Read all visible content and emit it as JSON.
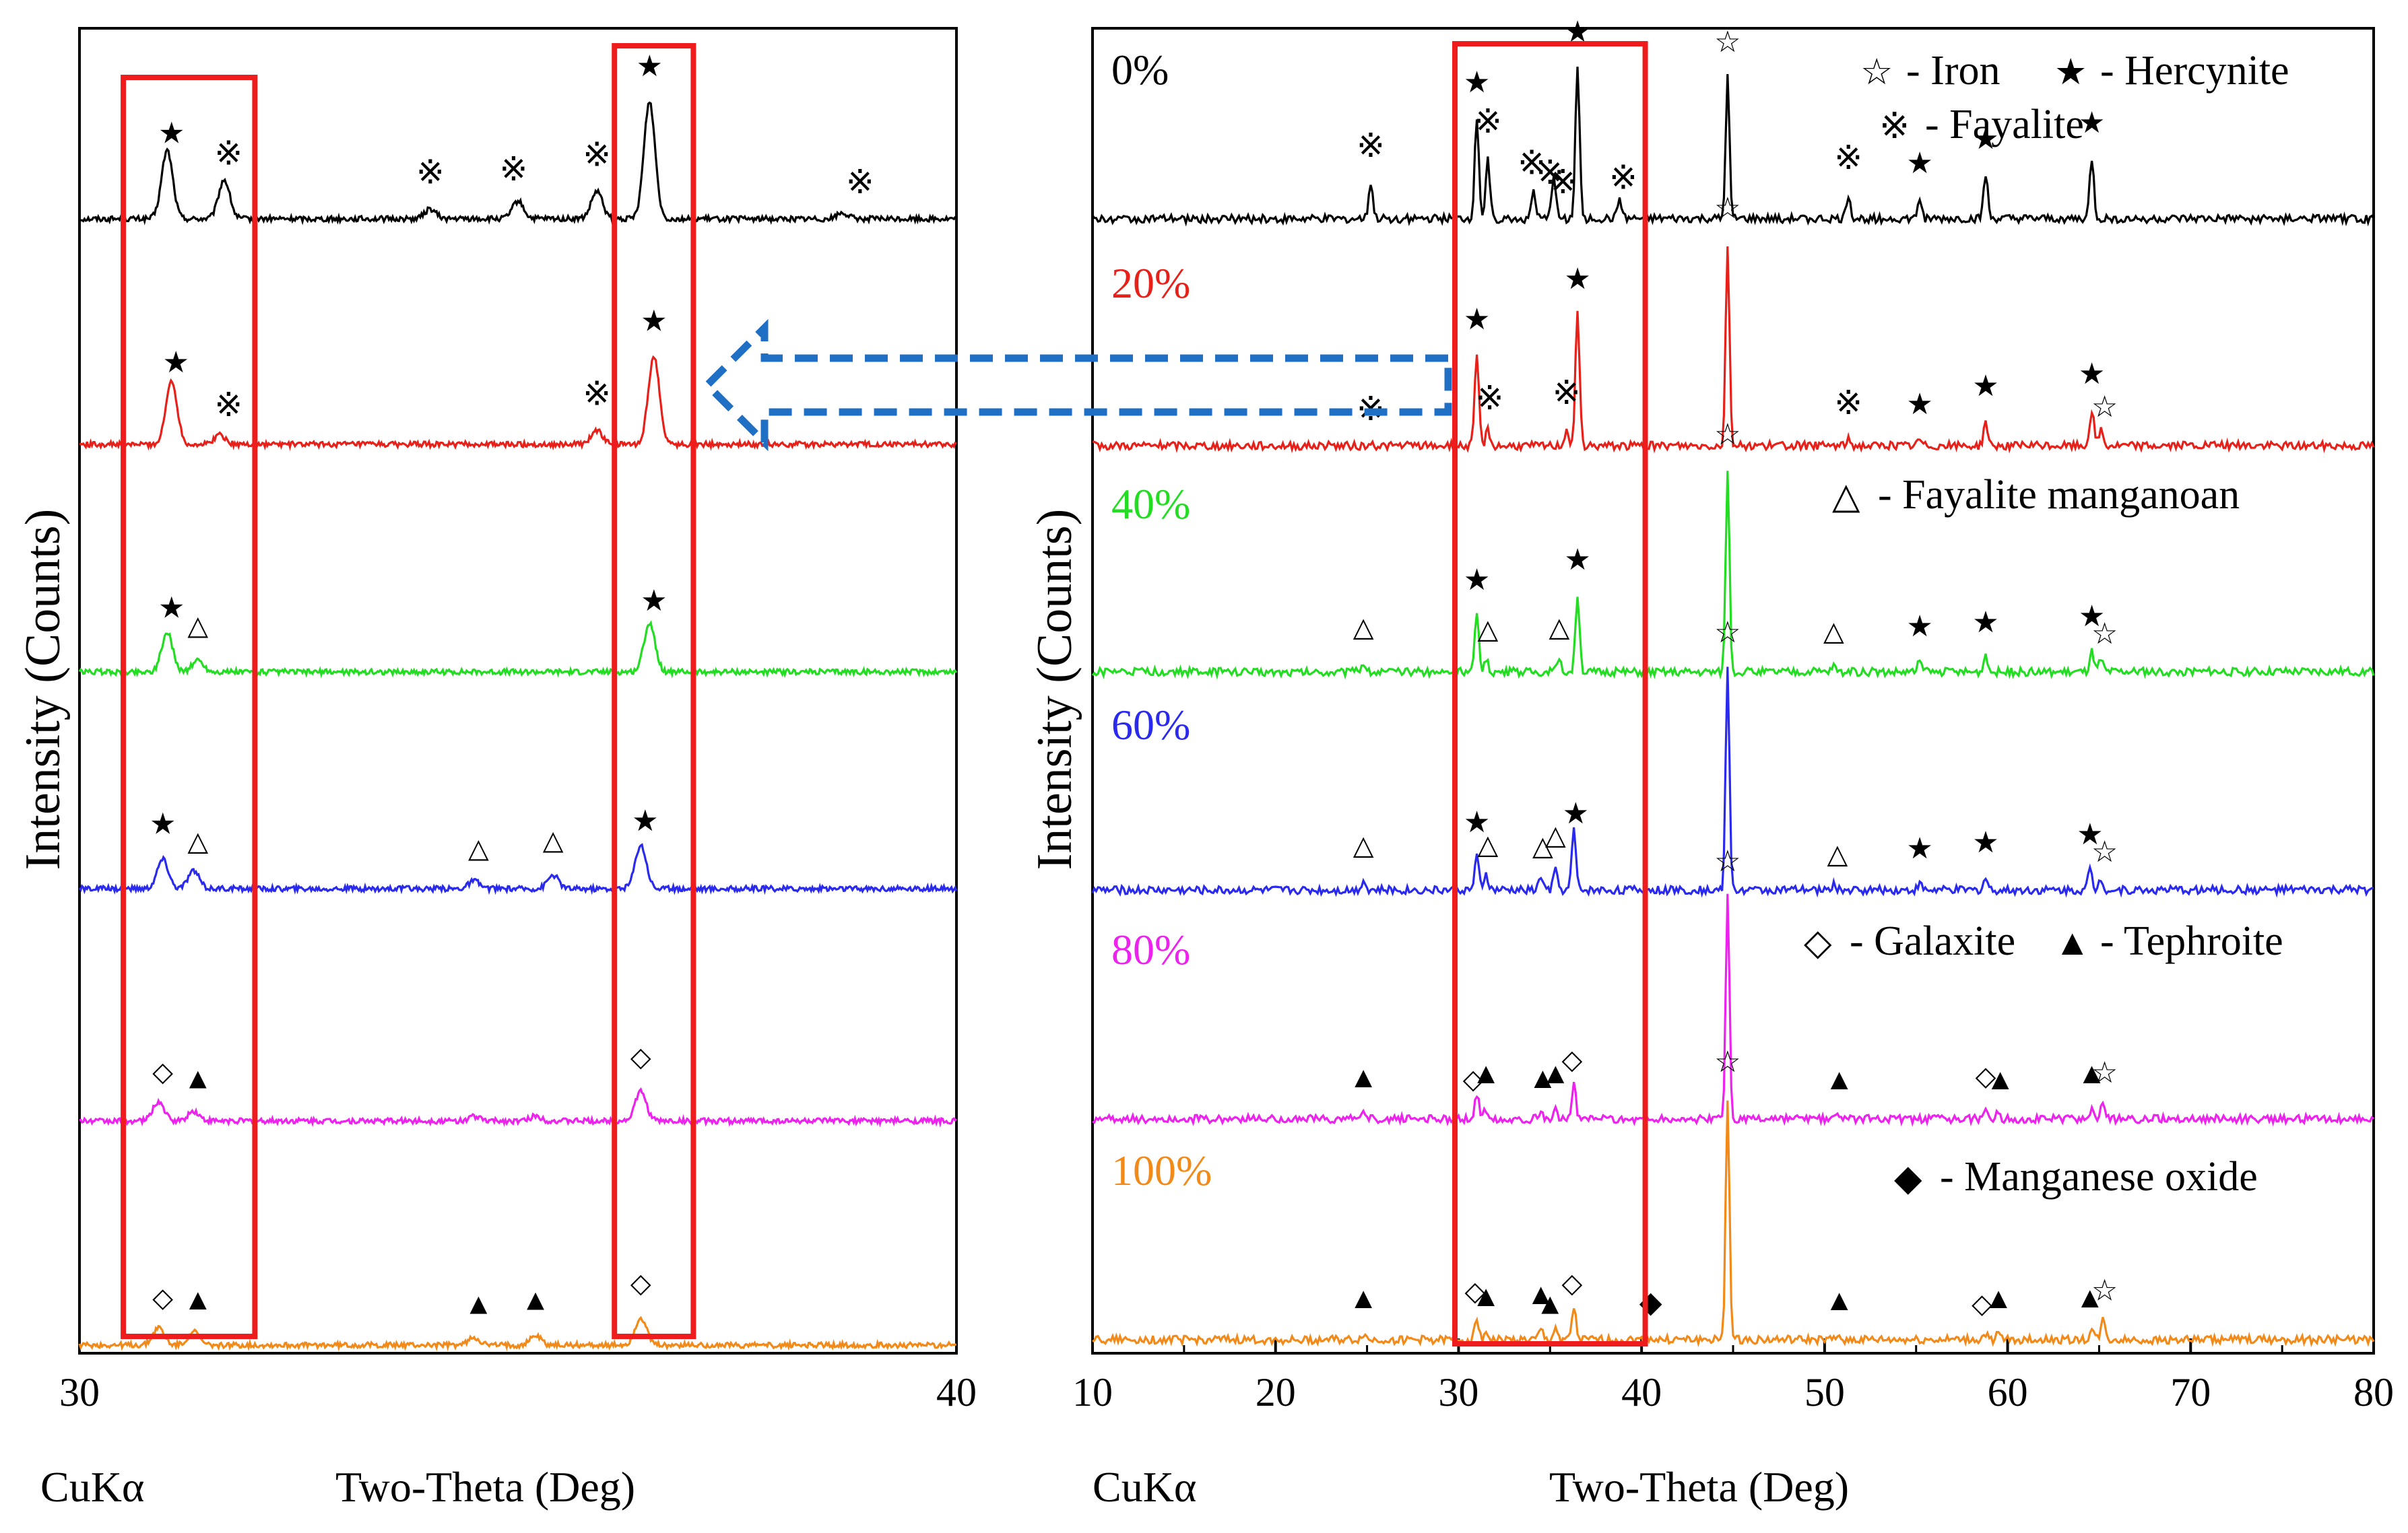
{
  "chart_data": [
    {
      "type": "line",
      "panel": "left (zoomed)",
      "xlabel": "Two-Theta (Deg)",
      "xprefix": "CuKα",
      "ylabel": "Intensity (Counts)",
      "xlim": [
        30,
        40
      ],
      "xticks": [
        30,
        40
      ],
      "highlight_boxes_x": [
        [
          30.5,
          32.0
        ],
        [
          36.1,
          37.0
        ]
      ],
      "series": [
        {
          "name": "0%",
          "color": "#000000",
          "peaks": [
            {
              "x": 31.0,
              "h": 70
            },
            {
              "x": 31.65,
              "h": 40
            },
            {
              "x": 34.0,
              "h": 10
            },
            {
              "x": 35.0,
              "h": 18
            },
            {
              "x": 35.9,
              "h": 28
            },
            {
              "x": 36.5,
              "h": 120
            },
            {
              "x": 38.7,
              "h": 6
            }
          ],
          "markers": [
            {
              "x": 31.05,
              "symbol": "★"
            },
            {
              "x": 31.7,
              "symbol": "※"
            },
            {
              "x": 34.0,
              "symbol": "※"
            },
            {
              "x": 34.95,
              "symbol": "※"
            },
            {
              "x": 35.9,
              "symbol": "※"
            },
            {
              "x": 36.5,
              "symbol": "★"
            },
            {
              "x": 38.9,
              "symbol": "※"
            }
          ]
        },
        {
          "name": "20%",
          "color": "#e8201a",
          "peaks": [
            {
              "x": 31.05,
              "h": 65
            },
            {
              "x": 31.6,
              "h": 10
            },
            {
              "x": 35.9,
              "h": 14
            },
            {
              "x": 36.55,
              "h": 90
            }
          ],
          "markers": [
            {
              "x": 31.1,
              "symbol": "★"
            },
            {
              "x": 31.7,
              "symbol": "※"
            },
            {
              "x": 35.9,
              "symbol": "※"
            },
            {
              "x": 36.55,
              "symbol": "★"
            }
          ]
        },
        {
          "name": "40%",
          "color": "#22dd22",
          "peaks": [
            {
              "x": 31.0,
              "h": 40
            },
            {
              "x": 31.35,
              "h": 12
            },
            {
              "x": 36.5,
              "h": 50
            }
          ],
          "markers": [
            {
              "x": 31.05,
              "symbol": "★"
            },
            {
              "x": 31.35,
              "symbol": "△"
            },
            {
              "x": 36.55,
              "symbol": "★"
            }
          ]
        },
        {
          "name": "60%",
          "color": "#2a2aee",
          "peaks": [
            {
              "x": 30.95,
              "h": 30
            },
            {
              "x": 31.3,
              "h": 18
            },
            {
              "x": 34.5,
              "h": 8
            },
            {
              "x": 35.4,
              "h": 14
            },
            {
              "x": 36.4,
              "h": 45
            }
          ],
          "markers": [
            {
              "x": 30.95,
              "symbol": "★"
            },
            {
              "x": 31.35,
              "symbol": "△"
            },
            {
              "x": 34.55,
              "symbol": "△"
            },
            {
              "x": 35.4,
              "symbol": "△"
            },
            {
              "x": 36.45,
              "symbol": "★"
            }
          ]
        },
        {
          "name": "80%",
          "color": "#ee22ee",
          "peaks": [
            {
              "x": 30.9,
              "h": 20
            },
            {
              "x": 31.3,
              "h": 10
            },
            {
              "x": 34.5,
              "h": 5
            },
            {
              "x": 35.2,
              "h": 5
            },
            {
              "x": 36.4,
              "h": 30
            }
          ],
          "markers": [
            {
              "x": 30.95,
              "symbol": "◇"
            },
            {
              "x": 31.35,
              "symbol": "▲"
            },
            {
              "x": 36.4,
              "symbol": "◇"
            }
          ]
        },
        {
          "name": "100%",
          "color": "#f28a1a",
          "peaks": [
            {
              "x": 30.9,
              "h": 18
            },
            {
              "x": 31.3,
              "h": 14
            },
            {
              "x": 34.5,
              "h": 8
            },
            {
              "x": 35.2,
              "h": 10
            },
            {
              "x": 36.4,
              "h": 28
            }
          ],
          "markers": [
            {
              "x": 30.95,
              "symbol": "◇"
            },
            {
              "x": 31.35,
              "symbol": "▲"
            },
            {
              "x": 34.55,
              "symbol": "▲"
            },
            {
              "x": 35.2,
              "symbol": "▲"
            },
            {
              "x": 36.4,
              "symbol": "◇"
            }
          ]
        }
      ]
    },
    {
      "type": "line",
      "panel": "right (full range)",
      "xlabel": "Two-Theta (Deg)",
      "xprefix": "CuKα",
      "ylabel": "Intensity (Counts)",
      "xlim": [
        10,
        80
      ],
      "xticks": [
        10,
        20,
        30,
        40,
        50,
        60,
        70,
        80
      ],
      "highlight_boxes_x": [
        [
          29.8,
          40.2
        ]
      ],
      "legend": [
        {
          "symbol": "☆",
          "label": "- Iron"
        },
        {
          "symbol": "★",
          "label": "- Hercynite"
        },
        {
          "symbol": "※",
          "label": "- Fayalite"
        },
        {
          "symbol": "△",
          "label": "- Fayalite manganoan"
        },
        {
          "symbol": "◇",
          "label": "- Galaxite"
        },
        {
          "symbol": "▲",
          "label": "- Tephroite"
        },
        {
          "symbol": "◆",
          "label": "- Manganese oxide"
        }
      ],
      "series": [
        {
          "name": "0%",
          "color": "#000000",
          "peaks": [
            {
              "x": 25.2,
              "h": 18
            },
            {
              "x": 31.0,
              "h": 50
            },
            {
              "x": 31.6,
              "h": 30
            },
            {
              "x": 34.1,
              "h": 14
            },
            {
              "x": 35.2,
              "h": 22
            },
            {
              "x": 36.5,
              "h": 75
            },
            {
              "x": 38.8,
              "h": 10
            },
            {
              "x": 44.7,
              "h": 70
            },
            {
              "x": 51.3,
              "h": 12
            },
            {
              "x": 55.2,
              "h": 10
            },
            {
              "x": 58.8,
              "h": 22
            },
            {
              "x": 64.6,
              "h": 30
            }
          ],
          "markers": [
            {
              "x": 25.2,
              "symbol": "※"
            },
            {
              "x": 31.0,
              "symbol": "★"
            },
            {
              "x": 31.6,
              "symbol": "※"
            },
            {
              "x": 34.0,
              "symbol": "※"
            },
            {
              "x": 35.0,
              "symbol": "※"
            },
            {
              "x": 35.7,
              "symbol": "※"
            },
            {
              "x": 36.5,
              "symbol": "★"
            },
            {
              "x": 39.0,
              "symbol": "※"
            },
            {
              "x": 44.7,
              "symbol": "☆"
            },
            {
              "x": 51.3,
              "symbol": "※"
            },
            {
              "x": 55.2,
              "symbol": "★"
            },
            {
              "x": 58.8,
              "symbol": "★"
            },
            {
              "x": 64.6,
              "symbol": "★"
            }
          ]
        },
        {
          "name": "20%",
          "color": "#e8201a",
          "peaks": [
            {
              "x": 31.0,
              "h": 45
            },
            {
              "x": 31.6,
              "h": 8
            },
            {
              "x": 35.9,
              "h": 8
            },
            {
              "x": 36.5,
              "h": 65
            },
            {
              "x": 44.7,
              "h": 100
            },
            {
              "x": 51.3,
              "h": 3
            },
            {
              "x": 55.2,
              "h": 3
            },
            {
              "x": 58.8,
              "h": 12
            },
            {
              "x": 64.6,
              "h": 18
            },
            {
              "x": 65.1,
              "h": 8
            }
          ],
          "markers": [
            {
              "x": 25.2,
              "symbol": "※"
            },
            {
              "x": 31.0,
              "symbol": "★"
            },
            {
              "x": 31.7,
              "symbol": "※"
            },
            {
              "x": 35.9,
              "symbol": "※"
            },
            {
              "x": 36.5,
              "symbol": "★"
            },
            {
              "x": 44.7,
              "symbol": "☆"
            },
            {
              "x": 51.3,
              "symbol": "※"
            },
            {
              "x": 55.2,
              "symbol": "★"
            },
            {
              "x": 58.8,
              "symbol": "★"
            },
            {
              "x": 64.6,
              "symbol": "★"
            },
            {
              "x": 65.3,
              "symbol": "☆"
            }
          ]
        },
        {
          "name": "40%",
          "color": "#22dd22",
          "peaks": [
            {
              "x": 24.8,
              "h": 5
            },
            {
              "x": 31.0,
              "h": 28
            },
            {
              "x": 31.5,
              "h": 6
            },
            {
              "x": 35.5,
              "h": 5
            },
            {
              "x": 36.5,
              "h": 38
            },
            {
              "x": 44.7,
              "h": 100
            },
            {
              "x": 50.5,
              "h": 3
            },
            {
              "x": 55.2,
              "h": 5
            },
            {
              "x": 58.8,
              "h": 7
            },
            {
              "x": 64.6,
              "h": 10
            },
            {
              "x": 65.1,
              "h": 6
            }
          ],
          "markers": [
            {
              "x": 24.8,
              "symbol": "△"
            },
            {
              "x": 31.0,
              "symbol": "★"
            },
            {
              "x": 31.6,
              "symbol": "△"
            },
            {
              "x": 35.5,
              "symbol": "△"
            },
            {
              "x": 36.5,
              "symbol": "★"
            },
            {
              "x": 44.7,
              "symbol": "☆"
            },
            {
              "x": 50.5,
              "symbol": "△"
            },
            {
              "x": 55.2,
              "symbol": "★"
            },
            {
              "x": 58.8,
              "symbol": "★"
            },
            {
              "x": 64.6,
              "symbol": "★"
            },
            {
              "x": 65.3,
              "symbol": "☆"
            }
          ]
        },
        {
          "name": "60%",
          "color": "#2a2aee",
          "peaks": [
            {
              "x": 24.8,
              "h": 5
            },
            {
              "x": 31.0,
              "h": 16
            },
            {
              "x": 31.5,
              "h": 8
            },
            {
              "x": 34.5,
              "h": 7
            },
            {
              "x": 35.3,
              "h": 10
            },
            {
              "x": 36.3,
              "h": 30
            },
            {
              "x": 44.7,
              "h": 110
            },
            {
              "x": 50.5,
              "h": 3
            },
            {
              "x": 55.2,
              "h": 3
            },
            {
              "x": 58.8,
              "h": 6
            },
            {
              "x": 64.5,
              "h": 10
            },
            {
              "x": 65.1,
              "h": 6
            }
          ],
          "markers": [
            {
              "x": 24.8,
              "symbol": "△"
            },
            {
              "x": 31.0,
              "symbol": "★"
            },
            {
              "x": 31.6,
              "symbol": "△"
            },
            {
              "x": 34.6,
              "symbol": "△"
            },
            {
              "x": 35.3,
              "symbol": "△"
            },
            {
              "x": 36.4,
              "symbol": "★"
            },
            {
              "x": 44.7,
              "symbol": "☆"
            },
            {
              "x": 50.7,
              "symbol": "△"
            },
            {
              "x": 55.2,
              "symbol": "★"
            },
            {
              "x": 58.8,
              "symbol": "★"
            },
            {
              "x": 64.5,
              "symbol": "★"
            },
            {
              "x": 65.3,
              "symbol": "☆"
            }
          ]
        },
        {
          "name": "80%",
          "color": "#ee22ee",
          "peaks": [
            {
              "x": 24.8,
              "h": 3
            },
            {
              "x": 31.0,
              "h": 12
            },
            {
              "x": 31.5,
              "h": 5
            },
            {
              "x": 34.5,
              "h": 4
            },
            {
              "x": 35.3,
              "h": 5
            },
            {
              "x": 36.3,
              "h": 18
            },
            {
              "x": 44.7,
              "h": 110
            },
            {
              "x": 50.8,
              "h": 2
            },
            {
              "x": 58.8,
              "h": 4
            },
            {
              "x": 59.5,
              "h": 3
            },
            {
              "x": 64.6,
              "h": 5
            },
            {
              "x": 65.2,
              "h": 8
            }
          ],
          "markers": [
            {
              "x": 24.8,
              "symbol": "▲"
            },
            {
              "x": 30.8,
              "symbol": "◇"
            },
            {
              "x": 31.5,
              "symbol": "▲"
            },
            {
              "x": 34.6,
              "symbol": "▲"
            },
            {
              "x": 35.3,
              "symbol": "▲"
            },
            {
              "x": 36.2,
              "symbol": "◇"
            },
            {
              "x": 44.7,
              "symbol": "☆"
            },
            {
              "x": 50.8,
              "symbol": "▲"
            },
            {
              "x": 58.8,
              "symbol": "◇"
            },
            {
              "x": 59.6,
              "symbol": "▲"
            },
            {
              "x": 64.6,
              "symbol": "▲"
            },
            {
              "x": 65.3,
              "symbol": "☆"
            }
          ]
        },
        {
          "name": "100%",
          "color": "#f28a1a",
          "peaks": [
            {
              "x": 24.8,
              "h": 3
            },
            {
              "x": 31.0,
              "h": 10
            },
            {
              "x": 31.5,
              "h": 4
            },
            {
              "x": 34.5,
              "h": 5
            },
            {
              "x": 35.3,
              "h": 6
            },
            {
              "x": 36.3,
              "h": 16
            },
            {
              "x": 40.5,
              "h": 1
            },
            {
              "x": 44.7,
              "h": 120
            },
            {
              "x": 50.8,
              "h": 2
            },
            {
              "x": 58.8,
              "h": 3
            },
            {
              "x": 59.5,
              "h": 3
            },
            {
              "x": 64.6,
              "h": 5
            },
            {
              "x": 65.2,
              "h": 10
            }
          ],
          "markers": [
            {
              "x": 24.8,
              "symbol": "▲"
            },
            {
              "x": 30.9,
              "symbol": "◇"
            },
            {
              "x": 31.5,
              "symbol": "▲"
            },
            {
              "x": 34.5,
              "symbol": "▲"
            },
            {
              "x": 35.0,
              "symbol": "▲"
            },
            {
              "x": 36.2,
              "symbol": "◇"
            },
            {
              "x": 40.5,
              "symbol": "◆"
            },
            {
              "x": 44.7,
              "symbol": "☆"
            },
            {
              "x": 50.8,
              "symbol": "▲"
            },
            {
              "x": 58.6,
              "symbol": "◇"
            },
            {
              "x": 59.5,
              "symbol": "▲"
            },
            {
              "x": 64.5,
              "symbol": "▲"
            },
            {
              "x": 65.3,
              "symbol": "☆"
            }
          ]
        }
      ]
    }
  ]
}
